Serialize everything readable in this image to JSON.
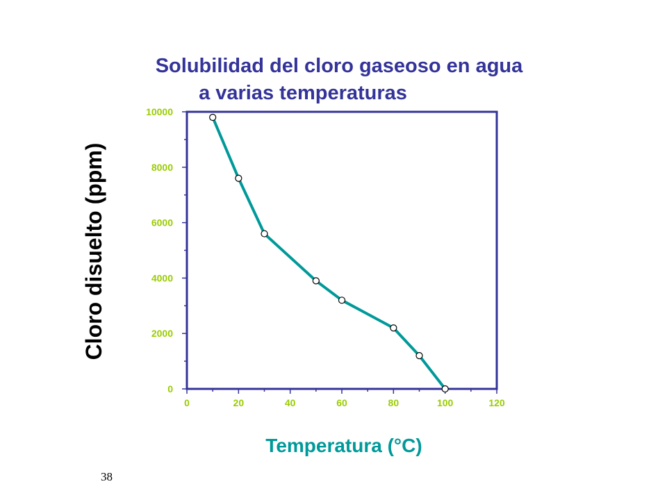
{
  "slide": {
    "page_number": "38"
  },
  "chart_data": {
    "type": "line",
    "title_line1": "Solubilidad del cloro gaseoso en agua",
    "title_line2": "a varias temperaturas",
    "xlabel": "Temperatura (°C)",
    "ylabel": "Cloro disuelto (ppm)",
    "xlim": [
      0,
      120
    ],
    "ylim": [
      0,
      10000
    ],
    "xticks": [
      0,
      20,
      40,
      60,
      80,
      100,
      120
    ],
    "xtick_labels": [
      "0",
      "20",
      "40",
      "60",
      "80",
      "100",
      "120"
    ],
    "yticks": [
      0,
      2000,
      4000,
      6000,
      8000,
      10000
    ],
    "ytick_labels": [
      "0",
      "2000",
      "4000",
      "6000",
      "8000",
      "10000"
    ],
    "series": [
      {
        "name": "Cloro disuelto",
        "x": [
          10,
          20,
          30,
          50,
          60,
          80,
          90,
          100
        ],
        "y": [
          9800,
          7600,
          5600,
          3900,
          3200,
          2200,
          1200,
          0
        ]
      }
    ],
    "colors": {
      "line": "#009999",
      "axes": "#333399",
      "ticks": "#99cc00",
      "marker_fill": "#ffffff"
    }
  }
}
